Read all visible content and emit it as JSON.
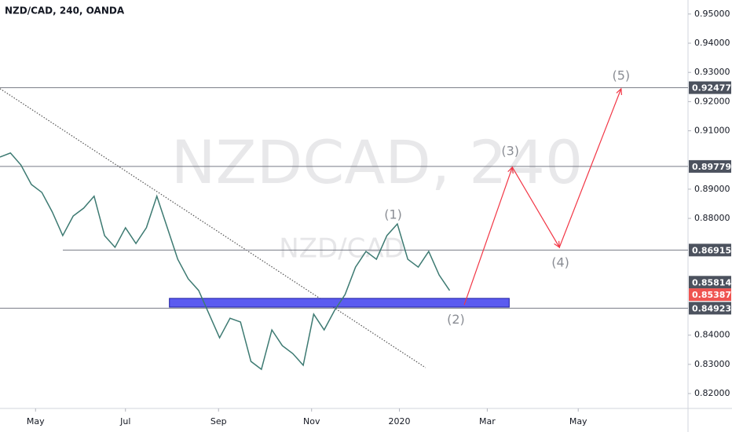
{
  "chart_data": {
    "type": "line",
    "title": "NZD/CAD, 240, OANDA",
    "watermark": "NZDCAD, 240",
    "watermark_sub": "NZD/CAD",
    "x": [
      0,
      1,
      2,
      3,
      4,
      5,
      6,
      7,
      8,
      9,
      10,
      11,
      12,
      13,
      14,
      15,
      16,
      17,
      18,
      19,
      20,
      21,
      22,
      23,
      24,
      25,
      26,
      27,
      28,
      29,
      30,
      31,
      32,
      33,
      34,
      35,
      36,
      37,
      38,
      39,
      40,
      41,
      42,
      43
    ],
    "series": [
      {
        "name": "NZD/CAD",
        "color": "#3d7a72",
        "values": [
          0.901,
          0.9024,
          0.8983,
          0.8916,
          0.8889,
          0.8822,
          0.8741,
          0.8808,
          0.8835,
          0.8876,
          0.8741,
          0.8701,
          0.8768,
          0.8714,
          0.8768,
          0.8876,
          0.8768,
          0.866,
          0.8593,
          0.8553,
          0.8472,
          0.8391,
          0.8458,
          0.8445,
          0.831,
          0.8283,
          0.8418,
          0.8364,
          0.8337,
          0.8297,
          0.8472,
          0.8418,
          0.8485,
          0.8539,
          0.8633,
          0.8687,
          0.866,
          0.8741,
          0.8781,
          0.866,
          0.8633,
          0.8687,
          0.8606,
          0.8553
        ]
      }
    ],
    "xlim": [
      0,
      65.8
    ],
    "xticks": [
      {
        "value": 3.4,
        "label": "May"
      },
      {
        "value": 12.0,
        "label": "Jul"
      },
      {
        "value": 20.9,
        "label": "Sep"
      },
      {
        "value": 29.8,
        "label": "Nov"
      },
      {
        "value": 38.2,
        "label": "2020"
      },
      {
        "value": 46.6,
        "label": "Mar"
      },
      {
        "value": 55.3,
        "label": "May"
      }
    ],
    "ylim": [
      0.8149,
      0.9548
    ],
    "yticks": [
      {
        "value": 0.82,
        "label": "0.82000"
      },
      {
        "value": 0.83,
        "label": "0.83000"
      },
      {
        "value": 0.84,
        "label": "0.84000"
      },
      {
        "value": 0.88,
        "label": "0.88000"
      },
      {
        "value": 0.89,
        "label": "0.89000"
      },
      {
        "value": 0.91,
        "label": "0.91000"
      },
      {
        "value": 0.92,
        "label": "0.92000"
      },
      {
        "value": 0.93,
        "label": "0.93000"
      },
      {
        "value": 0.94,
        "label": "0.94000"
      },
      {
        "value": 0.95,
        "label": "0.95000"
      }
    ],
    "price_lines": [
      {
        "value": 0.92477,
        "label": "0.92477"
      },
      {
        "value": 0.89779,
        "label": "0.89779"
      },
      {
        "value": 0.86915,
        "label": "0.86915"
      },
      {
        "value": 0.84923,
        "label": "0.84923"
      }
    ],
    "price_badges": [
      {
        "value": 0.85814,
        "label": "0.85814",
        "color": "#4c525e"
      },
      {
        "value": 0.85387,
        "label": "0.85387",
        "color": "#ef5350"
      }
    ],
    "zone": {
      "x": [
        16.2,
        48.7
      ],
      "y": [
        0.8496,
        0.8526
      ],
      "color": "#5b5bf0"
    },
    "trendline": {
      "x": [
        0,
        40.7
      ],
      "y": [
        0.92443,
        0.82887
      ]
    },
    "wave_path": {
      "color": "#f23645",
      "x": [
        44.4,
        49.0,
        53.5,
        59.4
      ],
      "y": [
        0.8504,
        0.8975,
        0.8701,
        0.9244
      ]
    },
    "wave_labels": [
      {
        "label": "(1)",
        "x": 37.6,
        "y": 0.8811
      },
      {
        "label": "(2)",
        "x": 43.6,
        "y": 0.8452
      },
      {
        "label": "(3)",
        "x": 48.8,
        "y": 0.9029
      },
      {
        "label": "(4)",
        "x": 53.6,
        "y": 0.8647
      },
      {
        "label": "(5)",
        "x": 59.4,
        "y": 0.9287
      }
    ]
  }
}
